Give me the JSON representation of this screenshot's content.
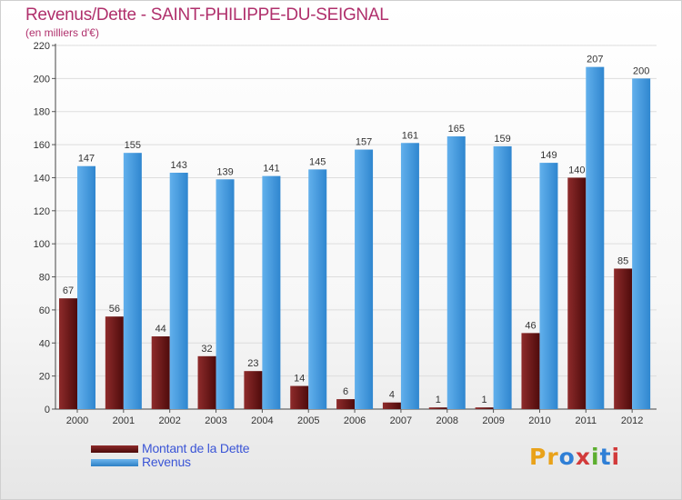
{
  "header": {
    "title": "Revenus/Dette - SAINT-PHILIPPE-DU-SEIGNAL",
    "subtitle": "(en milliers d'€)"
  },
  "colors": {
    "dette": "#7a1c1c",
    "revenus": "#4a9fe0",
    "title": "#b0306c",
    "legend_text": "#3b55d6"
  },
  "chart_data": {
    "type": "bar",
    "title": "Revenus/Dette - SAINT-PHILIPPE-DU-SEIGNAL",
    "subtitle": "(en milliers d'€)",
    "categories": [
      "2000",
      "2001",
      "2002",
      "2003",
      "2004",
      "2005",
      "2006",
      "2007",
      "2008",
      "2009",
      "2010",
      "2011",
      "2012"
    ],
    "series": [
      {
        "name": "Montant de la Dette",
        "values": [
          67,
          56,
          44,
          32,
          23,
          14,
          6,
          4,
          1,
          1,
          46,
          140,
          85
        ]
      },
      {
        "name": "Revenus",
        "values": [
          147,
          155,
          143,
          139,
          141,
          145,
          157,
          161,
          165,
          159,
          149,
          207,
          200
        ]
      }
    ],
    "yticks": [
      0,
      20,
      40,
      60,
      80,
      100,
      120,
      140,
      160,
      180,
      200,
      220
    ],
    "ylim": [
      0,
      220
    ],
    "grid": true,
    "legend": "bottom-left"
  },
  "legend": {
    "items": [
      {
        "label": "Montant de la Dette"
      },
      {
        "label": "Revenus"
      }
    ]
  },
  "logo": {
    "text": "Proxiti",
    "letters": [
      "P",
      "r",
      "o",
      "x",
      "i",
      "t",
      "i"
    ],
    "letter_colors": [
      "#e9a21a",
      "#e9a21a",
      "#2f7fd6",
      "#d23a3a",
      "#5cae2f",
      "#2f7fd6",
      "#d23a3a"
    ]
  }
}
